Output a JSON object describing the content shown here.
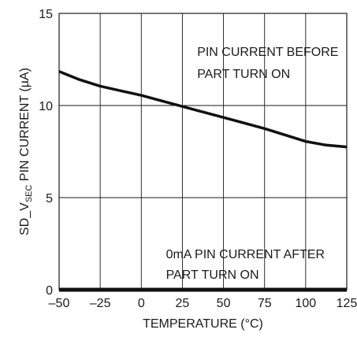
{
  "chart_data": {
    "type": "line",
    "title": "",
    "xlabel": "TEMPERATURE (°C)",
    "ylabel": {
      "prefix": "SD_V",
      "subscript": "SEC",
      "suffix": " PIN CURRENT (µA)"
    },
    "xlim": [
      -50,
      125
    ],
    "ylim": [
      0,
      15
    ],
    "x_ticks": [
      -50,
      -25,
      0,
      25,
      50,
      75,
      100,
      125
    ],
    "x_tick_labels": [
      "–50",
      "–25",
      "0",
      "25",
      "50",
      "75",
      "100",
      "125"
    ],
    "y_ticks": [
      0,
      5,
      10,
      15
    ],
    "y_tick_labels": [
      "0",
      "5",
      "10",
      "15"
    ],
    "grid": true,
    "series": [
      {
        "x": [
          -50,
          -37.5,
          -25,
          -12.5,
          0,
          12.5,
          25,
          37.5,
          50,
          62.5,
          75,
          87.5,
          100,
          112.5,
          125
        ],
        "y": [
          11.85,
          11.4,
          11.05,
          10.8,
          10.55,
          10.25,
          9.95,
          9.65,
          9.35,
          9.05,
          8.75,
          8.4,
          8.05,
          7.85,
          7.75
        ],
        "color": "#111111",
        "width": 3.5
      },
      {
        "x": [
          -50,
          125
        ],
        "y": [
          0,
          0
        ],
        "color": "#111111",
        "width": 5
      }
    ],
    "annotations": [
      {
        "lines": [
          "PIN CURRENT BEFORE",
          "PART TURN ON"
        ],
        "x": 34,
        "y": [
          12.7,
          11.5
        ]
      },
      {
        "lines": [
          "0mA PIN CURRENT AFTER",
          "PART TURN ON"
        ],
        "x": 15,
        "y": [
          1.7,
          0.6
        ]
      }
    ]
  }
}
